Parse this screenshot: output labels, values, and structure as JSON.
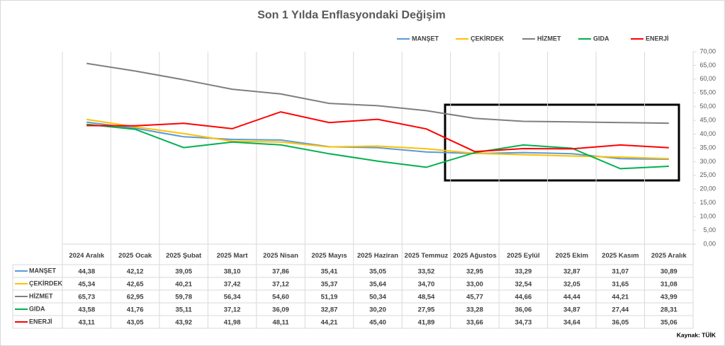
{
  "chart_data": {
    "type": "line",
    "title": "Son 1 Yılda Enflasyondaki Değişim",
    "source": "Kaynak: TÜİK",
    "categories": [
      "2024 Aralık",
      "2025 Ocak",
      "2025 Şubat",
      "2025 Mart",
      "2025 Nisan",
      "2025 Mayıs",
      "2025 Haziran",
      "2025 Temmuz",
      "2025 Ağustos",
      "2025 Eylül",
      "2025 Ekim",
      "2025 Kasım",
      "2025 Aralık"
    ],
    "ylim": [
      0,
      70
    ],
    "yticks": [
      {
        "value": 0,
        "label": "0,00"
      },
      {
        "value": 5,
        "label": "5,00"
      },
      {
        "value": 10,
        "label": "10,00"
      },
      {
        "value": 15,
        "label": "15,00"
      },
      {
        "value": 20,
        "label": "20,00"
      },
      {
        "value": 25,
        "label": "25,00"
      },
      {
        "value": 30,
        "label": "30,00"
      },
      {
        "value": 35,
        "label": "35,00"
      },
      {
        "value": 40,
        "label": "40,00"
      },
      {
        "value": 45,
        "label": "45,00"
      },
      {
        "value": 50,
        "label": "50,00"
      },
      {
        "value": 55,
        "label": "55,00"
      },
      {
        "value": 60,
        "label": "60,00"
      },
      {
        "value": 65,
        "label": "65,00"
      },
      {
        "value": 70,
        "label": "70,00"
      }
    ],
    "grid": "vertical",
    "series": [
      {
        "name": "MANŞET",
        "color": "#5b9bd5",
        "values": [
          44.38,
          42.12,
          39.05,
          38.1,
          37.86,
          35.41,
          35.05,
          33.52,
          32.95,
          33.29,
          32.87,
          31.07,
          30.89
        ],
        "value_labels": [
          "44,38",
          "42,12",
          "39,05",
          "38,10",
          "37,86",
          "35,41",
          "35,05",
          "33,52",
          "32,95",
          "33,29",
          "32,87",
          "31,07",
          "30,89"
        ]
      },
      {
        "name": "ÇEKİRDEK",
        "color": "#ffc000",
        "values": [
          45.34,
          42.65,
          40.21,
          37.42,
          37.12,
          35.37,
          35.64,
          34.7,
          33.0,
          32.54,
          32.05,
          31.65,
          31.08
        ],
        "value_labels": [
          "45,34",
          "42,65",
          "40,21",
          "37,42",
          "37,12",
          "35,37",
          "35,64",
          "34,70",
          "33,00",
          "32,54",
          "32,05",
          "31,65",
          "31,08"
        ]
      },
      {
        "name": "HİZMET",
        "color": "#7f7f7f",
        "values": [
          65.73,
          62.95,
          59.78,
          56.34,
          54.6,
          51.19,
          50.34,
          48.54,
          45.77,
          44.66,
          44.44,
          44.21,
          43.99
        ],
        "value_labels": [
          "65,73",
          "62,95",
          "59,78",
          "56,34",
          "54,60",
          "51,19",
          "50,34",
          "48,54",
          "45,77",
          "44,66",
          "44,44",
          "44,21",
          "43,99"
        ]
      },
      {
        "name": "GIDA",
        "color": "#00b050",
        "values": [
          43.58,
          41.76,
          35.11,
          37.12,
          36.09,
          32.87,
          30.2,
          27.95,
          33.28,
          36.06,
          34.87,
          27.44,
          28.31
        ],
        "value_labels": [
          "43,58",
          "41,76",
          "35,11",
          "37,12",
          "36,09",
          "32,87",
          "30,20",
          "27,95",
          "33,28",
          "36,06",
          "34,87",
          "27,44",
          "28,31"
        ]
      },
      {
        "name": "ENERJİ",
        "color": "#ff0000",
        "values": [
          43.11,
          43.05,
          43.92,
          41.98,
          48.11,
          44.21,
          45.4,
          41.89,
          33.66,
          34.73,
          34.64,
          36.05,
          35.06
        ],
        "value_labels": [
          "43,11",
          "43,05",
          "43,92",
          "41,98",
          "48,11",
          "44,21",
          "45,40",
          "41,89",
          "33,66",
          "34,73",
          "34,64",
          "36,05",
          "35,06"
        ]
      }
    ]
  }
}
